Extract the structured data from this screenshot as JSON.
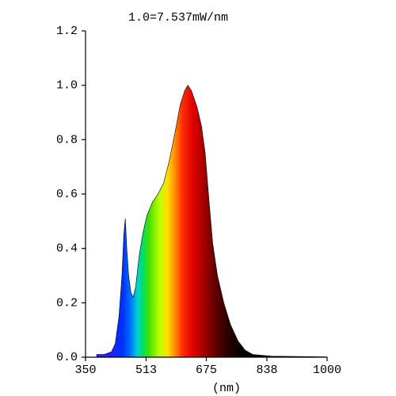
{
  "chart_data": {
    "type": "area",
    "title": "1.0=7.537mW/nm",
    "x_label": "(nm)",
    "x": [
      380,
      400,
      420,
      430,
      440,
      448,
      453,
      457,
      461,
      466,
      472,
      478,
      485,
      495,
      505,
      515,
      530,
      545,
      560,
      575,
      590,
      605,
      617,
      625,
      635,
      650,
      662,
      672,
      682,
      692,
      705,
      722,
      740,
      760,
      780,
      800,
      850,
      950,
      1000
    ],
    "values": [
      0.01,
      0.01,
      0.02,
      0.05,
      0.15,
      0.3,
      0.45,
      0.51,
      0.4,
      0.3,
      0.24,
      0.22,
      0.26,
      0.38,
      0.46,
      0.52,
      0.57,
      0.6,
      0.64,
      0.72,
      0.82,
      0.93,
      0.98,
      1.0,
      0.98,
      0.92,
      0.85,
      0.75,
      0.58,
      0.42,
      0.3,
      0.2,
      0.12,
      0.06,
      0.025,
      0.01,
      0.004,
      0.002,
      0.001
    ],
    "xlim": [
      350,
      1000
    ],
    "xticks": [
      350,
      513,
      675,
      838,
      1000
    ],
    "ylim": [
      0,
      1.2
    ],
    "yticks": [
      {
        "value": 0,
        "label": "0.0"
      },
      0.2,
      0.4,
      0.6,
      0.8,
      {
        "value": 1,
        "label": "1.0"
      },
      1.2
    ],
    "grid": false
  }
}
